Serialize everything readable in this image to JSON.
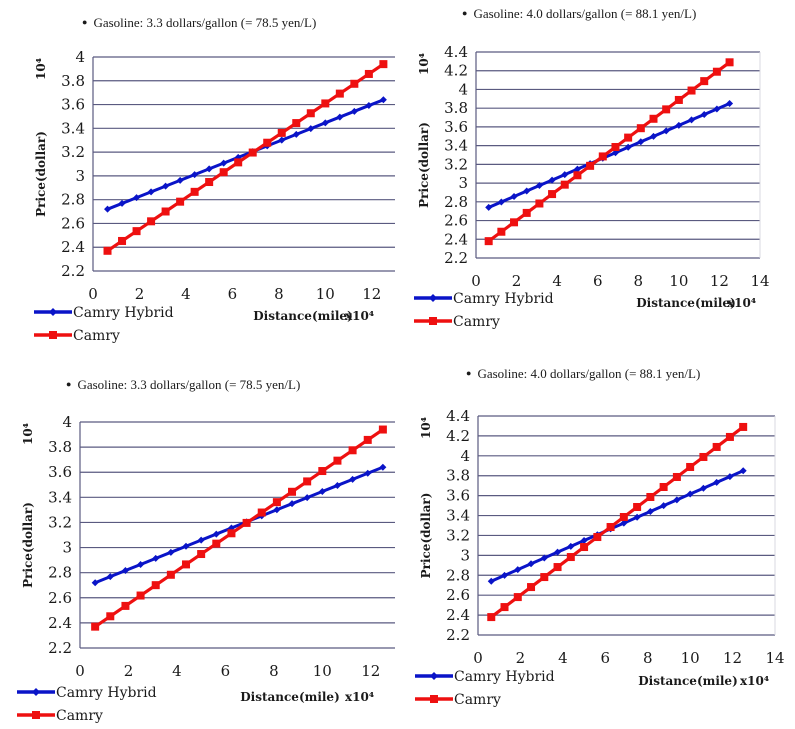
{
  "colors": {
    "hybrid": "#0a14c8",
    "camry": "#ee1010",
    "grid": "#5a5a80"
  },
  "legend": [
    "Camry Hybrid",
    "Camry"
  ],
  "chart_data": [
    {
      "type": "line",
      "title": "Gasoline: 3.3 dollars/gallon (= 78.5 yen/L)",
      "xlabel": "Distance(mile)",
      "xscale": "x10⁴",
      "ylabel": "Price(dollar)",
      "yscale": "10⁴",
      "xlim": [
        0,
        13
      ],
      "ylim": [
        2.2,
        4.0
      ],
      "xticks": [
        "0",
        "2",
        "4",
        "6",
        "8",
        "10",
        "12"
      ],
      "yticks": [
        "4",
        "3.8",
        "3.6",
        "3.4",
        "3.2",
        "3",
        "2.8",
        "2.6",
        "2.4",
        "2.2"
      ],
      "grid": true,
      "legend_position": "bottom-left",
      "x": [
        0.625,
        1.25,
        1.875,
        2.5,
        3.125,
        3.75,
        4.375,
        5,
        5.625,
        6.25,
        6.875,
        7.5,
        8.125,
        8.75,
        9.375,
        10,
        10.625,
        11.25,
        11.875,
        12.5
      ],
      "series": [
        {
          "name": "Camry Hybrid",
          "start": 2.72,
          "end": 3.64
        },
        {
          "name": "Camry",
          "start": 2.37,
          "end": 3.94
        }
      ]
    },
    {
      "type": "line",
      "title": "Gasoline: 4.0 dollars/gallon (= 88.1 yen/L)",
      "xlabel": "Distance(mile)",
      "xscale": "x10⁴",
      "ylabel": "Price(dollar)",
      "yscale": "10⁴",
      "xlim": [
        0,
        14
      ],
      "ylim": [
        2.2,
        4.4
      ],
      "xticks": [
        "0",
        "2",
        "4",
        "6",
        "8",
        "10",
        "12",
        "14"
      ],
      "yticks": [
        "4.4",
        "4.2",
        "4",
        "3.8",
        "3.6",
        "3.4",
        "3.2",
        "3",
        "2.8",
        "2.6",
        "2.4",
        "2.2"
      ],
      "grid": true,
      "legend_position": "bottom-left",
      "x": [
        0.625,
        1.25,
        1.875,
        2.5,
        3.125,
        3.75,
        4.375,
        5,
        5.625,
        6.25,
        6.875,
        7.5,
        8.125,
        8.75,
        9.375,
        10,
        10.625,
        11.25,
        11.875,
        12.5
      ],
      "series": [
        {
          "name": "Camry Hybrid",
          "start": 2.74,
          "end": 3.85
        },
        {
          "name": "Camry",
          "start": 2.38,
          "end": 4.29
        }
      ]
    },
    {
      "type": "line",
      "title": "Gasoline: 3.3 dollars/gallon (= 78.5 yen/L)",
      "xlabel": "Distance(mile)",
      "xscale": "x10⁴",
      "ylabel": "Price(dollar)",
      "yscale": "10⁴",
      "xlim": [
        0,
        13
      ],
      "ylim": [
        2.2,
        4.0
      ],
      "xticks": [
        "0",
        "2",
        "4",
        "6",
        "8",
        "10",
        "12"
      ],
      "yticks": [
        "4",
        "3.8",
        "3.6",
        "3.4",
        "3.2",
        "3",
        "2.8",
        "2.6",
        "2.4",
        "2.2"
      ],
      "grid": true,
      "legend_position": "bottom-left",
      "x": [
        0.625,
        1.25,
        1.875,
        2.5,
        3.125,
        3.75,
        4.375,
        5,
        5.625,
        6.25,
        6.875,
        7.5,
        8.125,
        8.75,
        9.375,
        10,
        10.625,
        11.25,
        11.875,
        12.5
      ],
      "series": [
        {
          "name": "Camry Hybrid",
          "start": 2.72,
          "end": 3.64
        },
        {
          "name": "Camry",
          "start": 2.37,
          "end": 3.94
        }
      ]
    },
    {
      "type": "line",
      "title": "Gasoline: 4.0 dollars/gallon (= 88.1 yen/L)",
      "xlabel": "Distance(mile)",
      "xscale": "x10⁴",
      "ylabel": "Price(dollar)",
      "yscale": "10⁴",
      "xlim": [
        0,
        14
      ],
      "ylim": [
        2.2,
        4.4
      ],
      "xticks": [
        "0",
        "2",
        "4",
        "6",
        "8",
        "10",
        "12",
        "14"
      ],
      "yticks": [
        "4.4",
        "4.2",
        "4",
        "3.8",
        "3.6",
        "3.4",
        "3.2",
        "3",
        "2.8",
        "2.6",
        "2.4",
        "2.2"
      ],
      "grid": true,
      "legend_position": "bottom-left",
      "x": [
        0.625,
        1.25,
        1.875,
        2.5,
        3.125,
        3.75,
        4.375,
        5,
        5.625,
        6.25,
        6.875,
        7.5,
        8.125,
        8.75,
        9.375,
        10,
        10.625,
        11.25,
        11.875,
        12.5
      ],
      "series": [
        {
          "name": "Camry Hybrid",
          "start": 2.74,
          "end": 3.85
        },
        {
          "name": "Camry",
          "start": 2.38,
          "end": 4.29
        }
      ]
    }
  ]
}
